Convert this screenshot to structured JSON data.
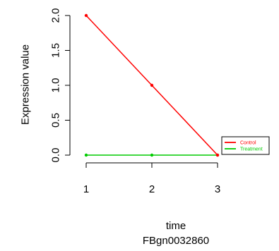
{
  "chart_data": {
    "type": "line",
    "xlabel": "time",
    "ylabel": "Expression value",
    "subtitle": "FBgn0032860",
    "x": [
      1,
      2,
      3
    ],
    "x_ticks": [
      "1",
      "2",
      "3"
    ],
    "y_ticks": [
      "0.0",
      "0.5",
      "1.0",
      "1.5",
      "2.0"
    ],
    "xlim": [
      1,
      3.9
    ],
    "ylim": [
      0,
      2.0
    ],
    "series": [
      {
        "name": "Control",
        "values": [
          2.0,
          1.0,
          0.0
        ],
        "color": "#ff0000"
      },
      {
        "name": "Treatment",
        "values": [
          0.0,
          0.0,
          0.0
        ],
        "color": "#00cc00"
      }
    ],
    "legend_position": "bottom-right",
    "grid": false
  }
}
